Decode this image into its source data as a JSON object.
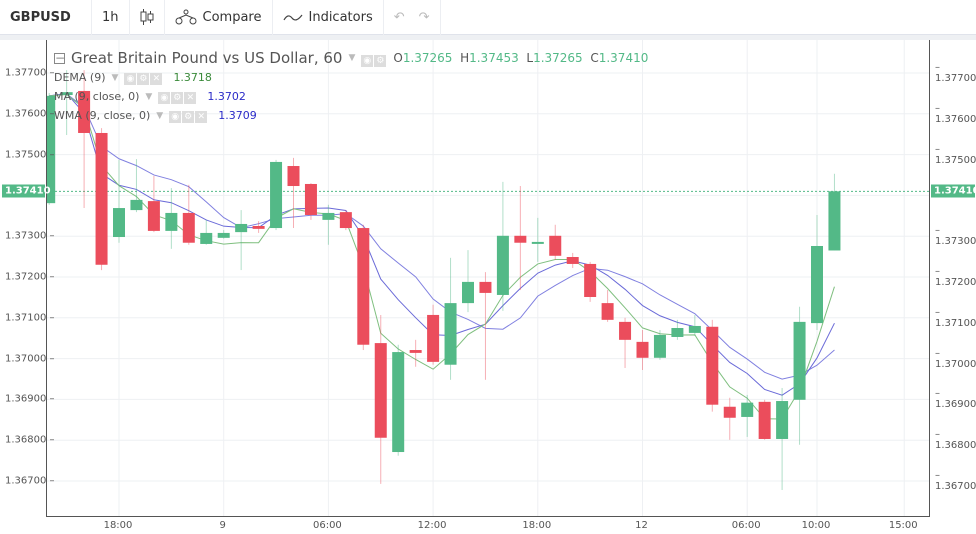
{
  "toolbar": {
    "symbol": "GBPUSD",
    "interval": "1h",
    "compare": "Compare",
    "indicators": "Indicators"
  },
  "legend": {
    "title": "Great Britain Pound vs US Dollar, 60",
    "o_label": "O",
    "o": "1.37265",
    "h_label": "H",
    "h": "1.37453",
    "l_label": "L",
    "l": "1.37265",
    "c_label": "C",
    "c": "1.37410",
    "studies": [
      {
        "name": "DEMA (9)",
        "value": "1.3718",
        "color": "#3a8a3a"
      },
      {
        "name": "MA (9, close, 0)",
        "value": "1.3702",
        "color": "#2b2bc8"
      },
      {
        "name": "WMA (9, close, 0)",
        "value": "1.3709",
        "color": "#2b2bc8"
      }
    ]
  },
  "price_axis": {
    "ticks": [
      "1.37700",
      "1.37600",
      "1.37500",
      "1.37300",
      "1.37200",
      "1.37100",
      "1.37000",
      "1.36900",
      "1.36800",
      "1.36700"
    ],
    "tick_values": [
      1.377,
      1.376,
      1.375,
      1.373,
      1.372,
      1.371,
      1.37,
      1.369,
      1.368,
      1.367
    ],
    "current": "1.37410",
    "current_value": 1.3741
  },
  "time_axis": {
    "labels": [
      {
        "t": "18:00",
        "h": 0
      },
      {
        "t": "9",
        "h": 6
      },
      {
        "t": "06:00",
        "h": 12
      },
      {
        "t": "12:00",
        "h": 18
      },
      {
        "t": "18:00",
        "h": 24
      },
      {
        "t": "12",
        "h": 30
      },
      {
        "t": "06:00",
        "h": 36
      },
      {
        "t": "10:00",
        "h": 40
      },
      {
        "t": "15:00",
        "h": 45
      }
    ]
  },
  "colors": {
    "up": "#53b987",
    "down": "#eb4d5c",
    "dema": "#7fbf7f",
    "ma": "#8080e0",
    "wma": "#6a6ad8"
  },
  "chart_data": {
    "type": "candlestick",
    "interval": "1h",
    "first_label_candle_index": 4,
    "ohlc": [
      [
        1.37381,
        1.37651,
        1.37377,
        1.37644
      ],
      [
        1.37646,
        1.37707,
        1.37548,
        1.37653
      ],
      [
        1.37656,
        1.37707,
        1.37369,
        1.37553
      ],
      [
        1.37553,
        1.37565,
        1.37217,
        1.3723
      ],
      [
        1.37298,
        1.37487,
        1.37284,
        1.37369
      ],
      [
        1.37364,
        1.37489,
        1.37359,
        1.37389
      ],
      [
        1.37386,
        1.37448,
        1.3731,
        1.37313
      ],
      [
        1.37313,
        1.37418,
        1.37269,
        1.37357
      ],
      [
        1.37357,
        1.37426,
        1.37279,
        1.37284
      ],
      [
        1.37281,
        1.3734,
        1.37279,
        1.37308
      ],
      [
        1.37296,
        1.37315,
        1.37294,
        1.37308
      ],
      [
        1.3731,
        1.37364,
        1.37217,
        1.3733
      ],
      [
        1.37325,
        1.37337,
        1.37308,
        1.37318
      ],
      [
        1.3732,
        1.37487,
        1.37315,
        1.37482
      ],
      [
        1.37472,
        1.37492,
        1.3732,
        1.37423
      ],
      [
        1.37428,
        1.3743,
        1.3734,
        1.37352
      ],
      [
        1.3734,
        1.37377,
        1.37279,
        1.37357
      ],
      [
        1.37359,
        1.37364,
        1.37315,
        1.3732
      ],
      [
        1.3732,
        1.37328,
        1.37021,
        1.37034
      ],
      [
        1.37038,
        1.37107,
        1.36693,
        1.36806
      ],
      [
        1.36771,
        1.37034,
        1.36762,
        1.37016
      ],
      [
        1.37021,
        1.37046,
        1.3698,
        1.37014
      ],
      [
        1.37107,
        1.37132,
        1.36985,
        1.36992
      ],
      [
        1.36985,
        1.37247,
        1.36948,
        1.37136
      ],
      [
        1.37136,
        1.37266,
        1.37114,
        1.37188
      ],
      [
        1.37188,
        1.37212,
        1.36948,
        1.37161
      ],
      [
        1.37156,
        1.37433,
        1.37117,
        1.37301
      ],
      [
        1.37301,
        1.37423,
        1.37168,
        1.37284
      ],
      [
        1.37284,
        1.37345,
        1.37237,
        1.37286
      ],
      [
        1.37301,
        1.37328,
        1.37242,
        1.37252
      ],
      [
        1.37249,
        1.37259,
        1.37222,
        1.37232
      ],
      [
        1.37232,
        1.37237,
        1.37139,
        1.37151
      ],
      [
        1.37136,
        1.37168,
        1.3709,
        1.37095
      ],
      [
        1.3709,
        1.371,
        1.36977,
        1.37046
      ],
      [
        1.37041,
        1.3707,
        1.36972,
        1.37002
      ],
      [
        1.37002,
        1.3707,
        1.36997,
        1.37058
      ],
      [
        1.37053,
        1.37095,
        1.37046,
        1.37075
      ],
      [
        1.37063,
        1.37107,
        1.37056,
        1.3708
      ],
      [
        1.37078,
        1.37095,
        1.3687,
        1.36887
      ],
      [
        1.36882,
        1.36904,
        1.36801,
        1.36855
      ],
      [
        1.36857,
        1.36911,
        1.36808,
        1.36892
      ],
      [
        1.36894,
        1.36899,
        1.36801,
        1.36803
      ],
      [
        1.36803,
        1.36928,
        1.36678,
        1.36896
      ],
      [
        1.36899,
        1.37127,
        1.36789,
        1.3709
      ],
      [
        1.37087,
        1.37352,
        1.3707,
        1.37276
      ],
      [
        1.37265,
        1.37453,
        1.37265,
        1.3741
      ]
    ],
    "ylim": [
      1.3664,
      1.3784
    ]
  }
}
